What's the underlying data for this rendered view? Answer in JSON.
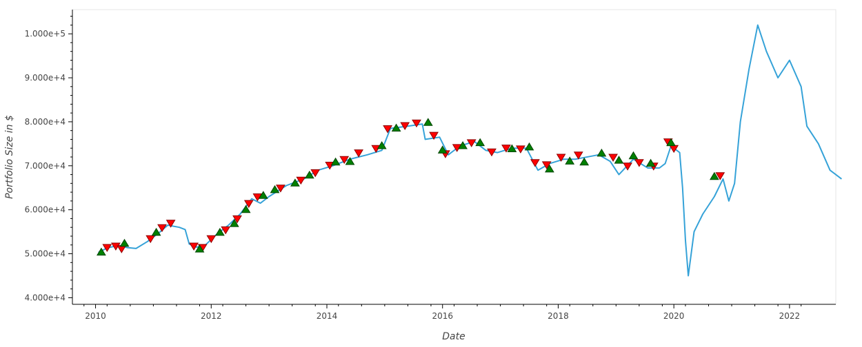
{
  "chart_data": {
    "type": "line",
    "xlabel": "Date",
    "ylabel": "Portfolio Size in $",
    "xlim": [
      2009.6,
      2022.8
    ],
    "ylim": [
      38500,
      105500
    ],
    "x_ticks": [
      2010,
      2012,
      2014,
      2016,
      2018,
      2020,
      2022
    ],
    "x_tick_labels": [
      "2010",
      "2012",
      "2014",
      "2016",
      "2018",
      "2020",
      "2022"
    ],
    "y_ticks": [
      40000,
      50000,
      60000,
      70000,
      80000,
      90000,
      100000
    ],
    "y_tick_labels": [
      "4.000e+4",
      "5.000e+4",
      "6.000e+4",
      "7.000e+4",
      "8.000e+4",
      "9.000e+4",
      "1.000e+5"
    ],
    "grid": false,
    "series": [
      {
        "kind": "line",
        "color": "#35a2d8",
        "points": [
          [
            2010.05,
            50300
          ],
          [
            2010.2,
            51300
          ],
          [
            2010.4,
            51900
          ],
          [
            2010.55,
            51400
          ],
          [
            2010.7,
            51200
          ],
          [
            2010.9,
            52800
          ],
          [
            2011.1,
            54800
          ],
          [
            2011.25,
            56500
          ],
          [
            2011.45,
            56000
          ],
          [
            2011.55,
            55500
          ],
          [
            2011.62,
            52200
          ],
          [
            2011.75,
            51500
          ],
          [
            2011.9,
            52000
          ],
          [
            2012.1,
            54500
          ],
          [
            2012.3,
            56500
          ],
          [
            2012.5,
            59000
          ],
          [
            2012.7,
            62500
          ],
          [
            2012.85,
            61500
          ],
          [
            2013.0,
            63000
          ],
          [
            2013.3,
            65500
          ],
          [
            2013.6,
            67000
          ],
          [
            2013.85,
            69000
          ],
          [
            2014.1,
            70000
          ],
          [
            2014.4,
            71500
          ],
          [
            2014.7,
            72500
          ],
          [
            2014.95,
            73500
          ],
          [
            2015.1,
            78500
          ],
          [
            2015.4,
            79000
          ],
          [
            2015.65,
            79500
          ],
          [
            2015.7,
            76000
          ],
          [
            2015.95,
            76500
          ],
          [
            2016.1,
            72500
          ],
          [
            2016.3,
            74500
          ],
          [
            2016.55,
            75500
          ],
          [
            2016.75,
            73500
          ],
          [
            2016.95,
            73000
          ],
          [
            2017.2,
            74000
          ],
          [
            2017.45,
            74000
          ],
          [
            2017.65,
            69000
          ],
          [
            2017.85,
            70500
          ],
          [
            2018.1,
            71500
          ],
          [
            2018.3,
            71500
          ],
          [
            2018.7,
            72500
          ],
          [
            2018.9,
            71000
          ],
          [
            2019.05,
            68000
          ],
          [
            2019.3,
            71500
          ],
          [
            2019.55,
            69500
          ],
          [
            2019.75,
            69500
          ],
          [
            2019.85,
            70500
          ],
          [
            2019.95,
            74500
          ],
          [
            2020.1,
            73000
          ],
          [
            2020.15,
            65000
          ],
          [
            2020.2,
            53000
          ],
          [
            2020.25,
            45000
          ],
          [
            2020.35,
            55000
          ],
          [
            2020.5,
            59000
          ],
          [
            2020.7,
            63000
          ],
          [
            2020.85,
            67000
          ],
          [
            2020.95,
            62000
          ],
          [
            2021.05,
            66000
          ],
          [
            2021.15,
            80000
          ],
          [
            2021.3,
            92000
          ],
          [
            2021.45,
            102000
          ],
          [
            2021.6,
            96000
          ],
          [
            2021.8,
            90000
          ],
          [
            2022.0,
            94000
          ],
          [
            2022.2,
            88000
          ],
          [
            2022.3,
            79000
          ],
          [
            2022.5,
            75000
          ],
          [
            2022.7,
            69000
          ],
          [
            2022.9,
            67000
          ]
        ]
      },
      {
        "kind": "markers",
        "marker": "triangle-down",
        "color": "#ff0000",
        "stroke": "#8b0000",
        "points": [
          [
            2010.2,
            51500
          ],
          [
            2010.35,
            51800
          ],
          [
            2010.45,
            51200
          ],
          [
            2010.95,
            53500
          ],
          [
            2011.15,
            56000
          ],
          [
            2011.3,
            57000
          ],
          [
            2011.7,
            51800
          ],
          [
            2011.85,
            51500
          ],
          [
            2012.0,
            53500
          ],
          [
            2012.25,
            55500
          ],
          [
            2012.45,
            58000
          ],
          [
            2012.65,
            61500
          ],
          [
            2012.8,
            63000
          ],
          [
            2013.2,
            65000
          ],
          [
            2013.55,
            66800
          ],
          [
            2013.8,
            68500
          ],
          [
            2014.05,
            70200
          ],
          [
            2014.3,
            71500
          ],
          [
            2014.55,
            73000
          ],
          [
            2014.85,
            74000
          ],
          [
            2015.05,
            78500
          ],
          [
            2015.35,
            79200
          ],
          [
            2015.55,
            79800
          ],
          [
            2015.85,
            77000
          ],
          [
            2016.05,
            72800
          ],
          [
            2016.25,
            74200
          ],
          [
            2016.5,
            75300
          ],
          [
            2016.85,
            73200
          ],
          [
            2017.1,
            74100
          ],
          [
            2017.35,
            73900
          ],
          [
            2017.6,
            70800
          ],
          [
            2017.8,
            70300
          ],
          [
            2018.05,
            72000
          ],
          [
            2018.35,
            72500
          ],
          [
            2018.95,
            72000
          ],
          [
            2019.2,
            70000
          ],
          [
            2019.4,
            70800
          ],
          [
            2019.65,
            70000
          ],
          [
            2019.9,
            75500
          ],
          [
            2020.0,
            74000
          ],
          [
            2020.8,
            67800
          ]
        ]
      },
      {
        "kind": "markers",
        "marker": "triangle-up",
        "color": "#008000",
        "stroke": "#004400",
        "points": [
          [
            2010.1,
            50300
          ],
          [
            2010.5,
            52300
          ],
          [
            2011.05,
            54800
          ],
          [
            2011.8,
            51000
          ],
          [
            2012.15,
            54800
          ],
          [
            2012.4,
            56800
          ],
          [
            2012.6,
            60000
          ],
          [
            2012.9,
            63200
          ],
          [
            2013.1,
            64500
          ],
          [
            2013.45,
            66000
          ],
          [
            2013.7,
            67800
          ],
          [
            2014.15,
            70800
          ],
          [
            2014.4,
            70900
          ],
          [
            2014.95,
            74500
          ],
          [
            2015.2,
            78500
          ],
          [
            2015.75,
            79800
          ],
          [
            2016.0,
            73500
          ],
          [
            2016.35,
            74500
          ],
          [
            2016.65,
            75200
          ],
          [
            2017.2,
            73800
          ],
          [
            2017.5,
            74200
          ],
          [
            2017.85,
            69200
          ],
          [
            2018.2,
            71000
          ],
          [
            2018.45,
            70800
          ],
          [
            2018.75,
            72800
          ],
          [
            2019.05,
            71200
          ],
          [
            2019.3,
            72200
          ],
          [
            2019.6,
            70500
          ],
          [
            2019.95,
            75200
          ],
          [
            2020.7,
            67500
          ]
        ]
      }
    ]
  }
}
